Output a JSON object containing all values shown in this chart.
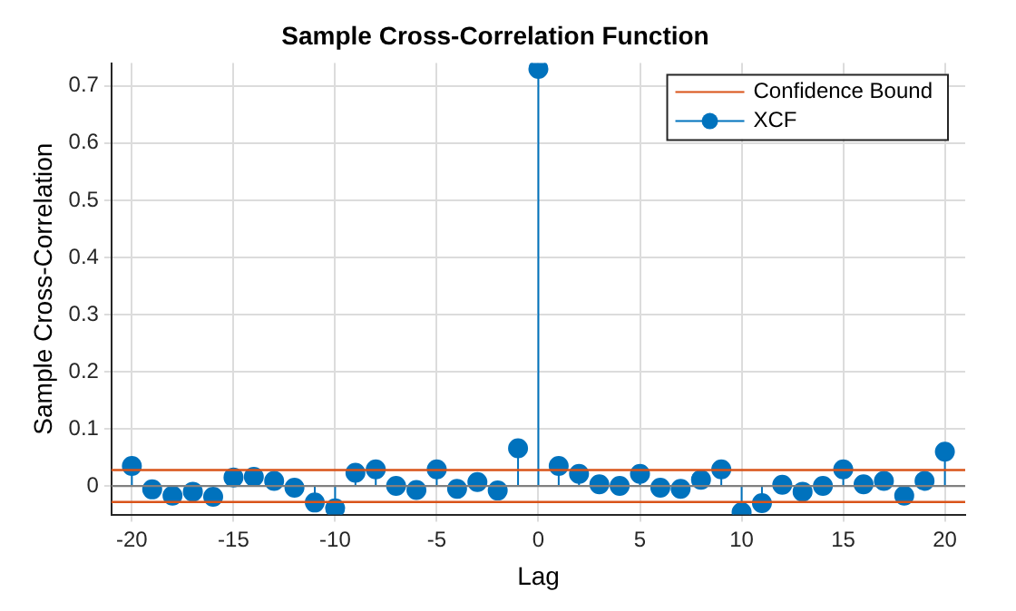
{
  "chart_data": {
    "type": "lollipop",
    "title": "Sample Cross-Correlation Function",
    "xlabel": "Lag",
    "ylabel": "Sample Cross-Correlation",
    "x": [
      -20,
      -19,
      -18,
      -17,
      -16,
      -15,
      -14,
      -13,
      -12,
      -11,
      -10,
      -9,
      -8,
      -7,
      -6,
      -5,
      -4,
      -3,
      -2,
      -1,
      0,
      1,
      2,
      3,
      4,
      5,
      6,
      7,
      8,
      9,
      10,
      11,
      12,
      13,
      14,
      15,
      16,
      17,
      18,
      19,
      20
    ],
    "series": [
      {
        "name": "XCF",
        "color": "#0072bd",
        "values": [
          0.035,
          -0.006,
          -0.017,
          -0.01,
          -0.019,
          0.015,
          0.016,
          0.009,
          -0.003,
          -0.029,
          -0.039,
          0.023,
          0.029,
          0,
          -0.007,
          0.029,
          -0.005,
          0.007,
          -0.008,
          0.066,
          0.73,
          0.035,
          0.021,
          0.003,
          0,
          0.021,
          -0.003,
          -0.005,
          0.011,
          0.029,
          -0.046,
          -0.03,
          0.002,
          -0.01,
          0,
          0.029,
          0.003,
          0.009,
          -0.017,
          0.009,
          0.06
        ]
      }
    ],
    "ref_lines": [
      {
        "axis": "y",
        "value": 0.028,
        "label": "Confidence Bound",
        "color": "#d95319"
      },
      {
        "axis": "y",
        "value": -0.028,
        "color": "#d95319"
      },
      {
        "axis": "y",
        "value": 0,
        "color": "#808080"
      }
    ],
    "marker": "circle",
    "xlim": [
      -21,
      21
    ],
    "xticks": [
      -20,
      -15,
      -10,
      -5,
      0,
      5,
      10,
      15,
      20
    ],
    "ylim": [
      -0.05,
      0.74
    ],
    "yticks": [
      0,
      0.1,
      0.2,
      0.3,
      0.4,
      0.5,
      0.6,
      0.7
    ],
    "grid": true,
    "legend": "top right"
  }
}
